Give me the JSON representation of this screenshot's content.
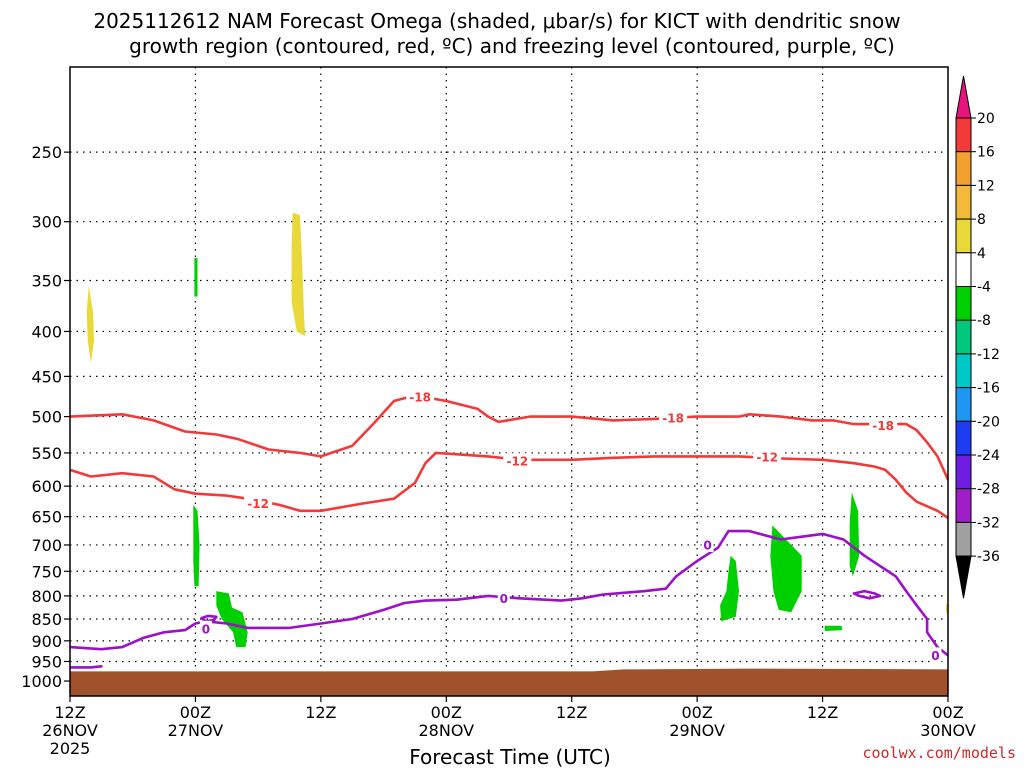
{
  "chart_data": {
    "type": "heatmap",
    "title_lines": [
      "2025112612 NAM Forecast Omega (shaded, μbar/s) for KICT with dendritic snow",
      "growth region (contoured, red, ºC) and freezing level (contoured, purple, ºC)"
    ],
    "xlabel": "Forecast Time (UTC)",
    "ylabel": "",
    "x_unit": "forecast hours",
    "x_range": [
      0,
      84
    ],
    "y_unit": "hPa",
    "y_range": [
      200,
      1040
    ],
    "y_scale": "log-pressure",
    "x_ticks": [
      {
        "hour": 0,
        "lines": [
          "12Z",
          "26NOV",
          "2025"
        ]
      },
      {
        "hour": 12,
        "lines": [
          "00Z",
          "27NOV"
        ]
      },
      {
        "hour": 24,
        "lines": [
          "12Z"
        ]
      },
      {
        "hour": 36,
        "lines": [
          "00Z",
          "28NOV"
        ]
      },
      {
        "hour": 48,
        "lines": [
          "12Z"
        ]
      },
      {
        "hour": 60,
        "lines": [
          "00Z",
          "29NOV"
        ]
      },
      {
        "hour": 72,
        "lines": [
          "12Z"
        ]
      },
      {
        "hour": 84,
        "lines": [
          "00Z",
          "30NOV"
        ]
      }
    ],
    "y_ticks": [
      250,
      300,
      350,
      400,
      450,
      500,
      550,
      600,
      650,
      700,
      750,
      800,
      850,
      900,
      950,
      1000
    ],
    "grid": true,
    "colorbar": {
      "placement": "right",
      "labels": [
        "20",
        "16",
        "12",
        "8",
        "4",
        "-4",
        "-8",
        "-12",
        "-16",
        "-20",
        "-24",
        "-28",
        "-32",
        "-36"
      ],
      "colors": [
        "#e8147d",
        "#f23a3a",
        "#f2a030",
        "#f2b93a",
        "#e8d83a",
        "#ffffff",
        "#00d000",
        "#00c87d",
        "#00c8c8",
        "#1e96f2",
        "#1e3cf2",
        "#6e1ee0",
        "#a01ec8",
        "#a0a0a0",
        "#000000"
      ]
    },
    "terrain": {
      "color": "#a0522d",
      "surface_pressure": [
        {
          "x": 0,
          "p": 975
        },
        {
          "x": 50,
          "p": 975
        },
        {
          "x": 53,
          "p": 970
        },
        {
          "x": 65,
          "p": 968
        },
        {
          "x": 84,
          "p": 970
        }
      ]
    },
    "fill_regions": [
      {
        "color": "#e8d83a",
        "points": [
          [
            1.8,
            355
          ],
          [
            2.2,
            380
          ],
          [
            2.3,
            410
          ],
          [
            2.0,
            435
          ],
          [
            1.7,
            410
          ],
          [
            1.6,
            380
          ]
        ]
      },
      {
        "color": "#e8d83a",
        "points": [
          [
            21.3,
            293
          ],
          [
            22.0,
            295
          ],
          [
            22.2,
            330
          ],
          [
            22.4,
            385
          ],
          [
            22.5,
            405
          ],
          [
            21.7,
            400
          ],
          [
            21.2,
            370
          ],
          [
            21.2,
            320
          ]
        ]
      },
      {
        "color": "#00d000",
        "points": [
          [
            11.9,
            330
          ],
          [
            12.2,
            330
          ],
          [
            12.2,
            365
          ],
          [
            11.9,
            365
          ]
        ]
      },
      {
        "color": "#00d000",
        "points": [
          [
            11.8,
            630
          ],
          [
            12.2,
            640
          ],
          [
            12.4,
            700
          ],
          [
            12.3,
            780
          ],
          [
            11.9,
            780
          ],
          [
            11.8,
            730
          ]
        ]
      },
      {
        "color": "#00d000",
        "points": [
          [
            14.0,
            790
          ],
          [
            15.2,
            795
          ],
          [
            15.5,
            825
          ],
          [
            16.5,
            835
          ],
          [
            17.0,
            880
          ],
          [
            16.8,
            915
          ],
          [
            15.9,
            915
          ],
          [
            15.6,
            880
          ],
          [
            14.5,
            850
          ],
          [
            14.0,
            820
          ]
        ]
      },
      {
        "color": "#00d000",
        "points": [
          [
            63.2,
            720
          ],
          [
            63.7,
            730
          ],
          [
            64.0,
            790
          ],
          [
            63.7,
            845
          ],
          [
            62.3,
            855
          ],
          [
            62.2,
            820
          ],
          [
            62.8,
            790
          ],
          [
            63.0,
            750
          ]
        ]
      },
      {
        "color": "#00d000",
        "points": [
          [
            67.2,
            665
          ],
          [
            68.5,
            690
          ],
          [
            70.0,
            720
          ],
          [
            70.0,
            790
          ],
          [
            69.0,
            835
          ],
          [
            67.8,
            830
          ],
          [
            67.3,
            790
          ],
          [
            67.0,
            720
          ]
        ]
      },
      {
        "color": "#00d000",
        "points": [
          [
            74.8,
            610
          ],
          [
            75.4,
            640
          ],
          [
            75.5,
            720
          ],
          [
            74.9,
            760
          ],
          [
            74.6,
            740
          ],
          [
            74.6,
            660
          ]
        ]
      },
      {
        "color": "#00d000",
        "points": [
          [
            72.2,
            865
          ],
          [
            73.8,
            865
          ],
          [
            73.9,
            875
          ],
          [
            72.2,
            877
          ]
        ]
      },
      {
        "color": "#e8d83a",
        "points": [
          [
            83.8,
            818
          ],
          [
            84.0,
            818
          ],
          [
            84.0,
            840
          ],
          [
            83.8,
            835
          ]
        ]
      }
    ],
    "contours": [
      {
        "name": "dgz-minus18",
        "level": "-18",
        "color": "#f23a3a",
        "points": [
          [
            0,
            500
          ],
          [
            5,
            497
          ],
          [
            8,
            505
          ],
          [
            11,
            520
          ],
          [
            14,
            524
          ],
          [
            16,
            530
          ],
          [
            19,
            545
          ],
          [
            22,
            550
          ],
          [
            24,
            555
          ],
          [
            25,
            550
          ],
          [
            27,
            540
          ],
          [
            29,
            510
          ],
          [
            31,
            480
          ],
          [
            33,
            473
          ],
          [
            36,
            480
          ],
          [
            39,
            490
          ],
          [
            40,
            500
          ],
          [
            41,
            507
          ],
          [
            44,
            500
          ],
          [
            48,
            500
          ],
          [
            52,
            505
          ],
          [
            56,
            503
          ],
          [
            60,
            500
          ],
          [
            64,
            500
          ],
          [
            65,
            497
          ],
          [
            68,
            500
          ],
          [
            71,
            505
          ],
          [
            73,
            505
          ],
          [
            75,
            510
          ],
          [
            76,
            510
          ],
          [
            79,
            510
          ],
          [
            80,
            510
          ],
          [
            81,
            518
          ],
          [
            82,
            535
          ],
          [
            83,
            555
          ],
          [
            84,
            590
          ]
        ]
      },
      {
        "name": "dgz-minus12",
        "level": "-12",
        "color": "#f23a3a",
        "points": [
          [
            0,
            575
          ],
          [
            2,
            585
          ],
          [
            5,
            580
          ],
          [
            8,
            585
          ],
          [
            10,
            605
          ],
          [
            12,
            612
          ],
          [
            15,
            615
          ],
          [
            17,
            620
          ],
          [
            20,
            630
          ],
          [
            22,
            640
          ],
          [
            24,
            640
          ],
          [
            28,
            628
          ],
          [
            31,
            620
          ],
          [
            33,
            595
          ],
          [
            34,
            565
          ],
          [
            35,
            550
          ],
          [
            36,
            551
          ],
          [
            40,
            555
          ],
          [
            43,
            560
          ],
          [
            48,
            560
          ],
          [
            52,
            557
          ],
          [
            56,
            555
          ],
          [
            60,
            555
          ],
          [
            64,
            555
          ],
          [
            68,
            558
          ],
          [
            72,
            560
          ],
          [
            75,
            565
          ],
          [
            77,
            570
          ],
          [
            78,
            575
          ],
          [
            79,
            590
          ],
          [
            80,
            610
          ],
          [
            81,
            625
          ],
          [
            83,
            640
          ],
          [
            84,
            652
          ]
        ]
      },
      {
        "name": "freezing-level",
        "level": "0",
        "color": "#9b10c8",
        "points": [
          [
            0,
            915
          ],
          [
            3,
            920
          ],
          [
            5,
            915
          ],
          [
            7,
            893
          ],
          [
            9,
            880
          ],
          [
            11,
            875
          ],
          [
            12,
            860
          ],
          [
            13,
            855
          ],
          [
            15,
            860
          ],
          [
            17,
            870
          ],
          [
            21,
            870
          ],
          [
            24,
            860
          ],
          [
            27,
            850
          ],
          [
            30,
            830
          ],
          [
            32,
            815
          ],
          [
            34,
            810
          ],
          [
            37,
            808
          ],
          [
            40,
            800
          ],
          [
            43,
            805
          ],
          [
            47,
            810
          ],
          [
            49,
            805
          ],
          [
            51,
            797
          ],
          [
            55,
            790
          ],
          [
            57,
            785
          ],
          [
            58,
            760
          ],
          [
            60,
            730
          ],
          [
            62,
            705
          ],
          [
            63,
            675
          ],
          [
            65,
            675
          ],
          [
            68,
            690
          ],
          [
            70,
            685
          ],
          [
            72,
            680
          ],
          [
            74,
            690
          ],
          [
            76,
            720
          ],
          [
            79,
            760
          ],
          [
            80,
            790
          ],
          [
            81,
            820
          ],
          [
            82,
            850
          ],
          [
            82,
            880
          ],
          [
            83,
            915
          ],
          [
            84,
            935
          ]
        ]
      },
      {
        "name": "freezing-level-sfc",
        "level": "",
        "color": "#9b10c8",
        "points": [
          [
            0,
            965
          ],
          [
            2,
            965
          ],
          [
            3,
            962
          ]
        ]
      },
      {
        "name": "freezing-level-island",
        "level": "",
        "color": "#9b10c8",
        "points": [
          [
            75,
            795
          ],
          [
            76,
            790
          ],
          [
            77,
            795
          ],
          [
            77.5,
            800
          ],
          [
            76.5,
            805
          ],
          [
            75.5,
            800
          ],
          [
            75,
            795
          ]
        ]
      },
      {
        "name": "freezing-level-blob",
        "level": "",
        "color": "#9b10c8",
        "points": [
          [
            13,
            855
          ],
          [
            12.6,
            848
          ],
          [
            13.2,
            843
          ],
          [
            14.0,
            845
          ],
          [
            13.8,
            852
          ],
          [
            13,
            855
          ]
        ]
      }
    ],
    "contour_labels": [
      {
        "text": "-18",
        "x": 33.5,
        "p": 475,
        "color": "#f23a3a"
      },
      {
        "text": "-18",
        "x": 57.7,
        "p": 502,
        "color": "#f23a3a"
      },
      {
        "text": "-18",
        "x": 77.8,
        "p": 512,
        "color": "#f23a3a"
      },
      {
        "text": "-12",
        "x": 18.0,
        "p": 628,
        "color": "#f23a3a"
      },
      {
        "text": "-12",
        "x": 42.8,
        "p": 562,
        "color": "#f23a3a"
      },
      {
        "text": "-12",
        "x": 66.7,
        "p": 556,
        "color": "#f23a3a"
      },
      {
        "text": "0",
        "x": 13.0,
        "p": 872,
        "color": "#9b10c8"
      },
      {
        "text": "0",
        "x": 41.5,
        "p": 805,
        "color": "#9b10c8"
      },
      {
        "text": "0",
        "x": 61.0,
        "p": 700,
        "color": "#9b10c8"
      },
      {
        "text": "0",
        "x": 82.8,
        "p": 935,
        "color": "#9b10c8"
      }
    ]
  },
  "credit": "coolwx.com/models"
}
